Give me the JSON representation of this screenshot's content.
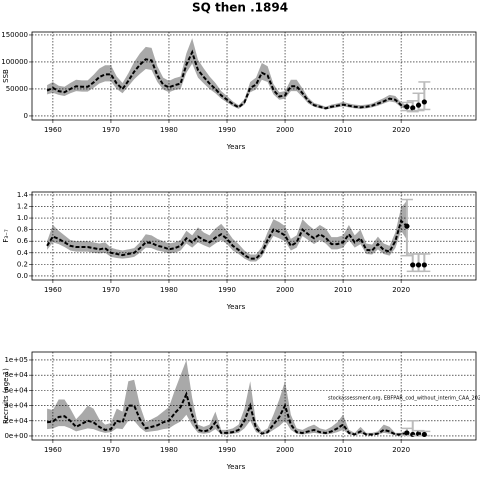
{
  "title": "SQ then .1894",
  "chart_data": [
    {
      "type": "line",
      "ylabel": "SSB",
      "xlabel": "Years",
      "x": [
        1959,
        1960,
        1961,
        1962,
        1963,
        1964,
        1965,
        1966,
        1967,
        1968,
        1969,
        1970,
        1971,
        1972,
        1973,
        1974,
        1975,
        1976,
        1977,
        1978,
        1979,
        1980,
        1981,
        1982,
        1983,
        1984,
        1985,
        1986,
        1987,
        1988,
        1989,
        1990,
        1991,
        1992,
        1993,
        1994,
        1995,
        1996,
        1997,
        1998,
        1999,
        2000,
        2001,
        2002,
        2003,
        2004,
        2005,
        2006,
        2007,
        2008,
        2009,
        2010,
        2011,
        2012,
        2013,
        2014,
        2015,
        2016,
        2017,
        2018,
        2019,
        2020,
        2021
      ],
      "values": [
        47000,
        52000,
        46000,
        44000,
        50000,
        55000,
        54000,
        54000,
        62000,
        72000,
        77000,
        77000,
        60000,
        50000,
        65000,
        82000,
        95000,
        105000,
        103000,
        75000,
        58000,
        53000,
        57000,
        60000,
        95000,
        118000,
        85000,
        72000,
        60000,
        50000,
        38000,
        30000,
        22000,
        16000,
        25000,
        52000,
        58000,
        80000,
        75000,
        48000,
        36000,
        38000,
        55000,
        55000,
        42000,
        28000,
        20000,
        17000,
        14000,
        17000,
        19000,
        21000,
        19000,
        17000,
        16000,
        17000,
        19000,
        23000,
        27000,
        32000,
        30000,
        20000,
        16000
      ],
      "lower": [
        40000,
        43000,
        39000,
        37000,
        42000,
        46000,
        45000,
        45000,
        52000,
        60000,
        64000,
        64000,
        50000,
        42000,
        55000,
        68000,
        78000,
        87000,
        85000,
        63000,
        49000,
        44000,
        48000,
        50000,
        80000,
        97000,
        71000,
        60000,
        50000,
        42000,
        32000,
        25000,
        18000,
        13000,
        21000,
        44000,
        49000,
        67000,
        63000,
        40000,
        30000,
        32000,
        46000,
        46000,
        35000,
        23000,
        17000,
        14000,
        12000,
        14000,
        16000,
        18000,
        16000,
        14000,
        13000,
        14000,
        16000,
        19000,
        23000,
        27000,
        25000,
        16000,
        12000
      ],
      "upper": [
        57000,
        63000,
        56000,
        54000,
        61000,
        67000,
        66000,
        66000,
        76000,
        88000,
        94000,
        94000,
        73000,
        61000,
        79000,
        100000,
        116000,
        128000,
        126000,
        92000,
        71000,
        65000,
        70000,
        73000,
        116000,
        144000,
        104000,
        88000,
        73000,
        61000,
        46000,
        37000,
        27000,
        20000,
        31000,
        63000,
        71000,
        98000,
        92000,
        59000,
        44000,
        46000,
        67000,
        67000,
        51000,
        34000,
        24000,
        21000,
        17000,
        21000,
        23000,
        26000,
        23000,
        21000,
        20000,
        21000,
        23000,
        28000,
        33000,
        39000,
        37000,
        25000,
        20000
      ],
      "proj_x": [
        2021,
        2022,
        2023,
        2024
      ],
      "proj_values": [
        17000,
        15000,
        20000,
        26000
      ],
      "proj_lower": [
        10000,
        8000,
        10000,
        12000
      ],
      "proj_upper": [
        25000,
        28000,
        42000,
        63000
      ],
      "xlim": [
        1956.4,
        2032.9
      ],
      "ylim": [
        -7500,
        155500
      ],
      "xticks": [
        1960,
        1970,
        1980,
        1990,
        2000,
        2010,
        2020
      ],
      "yticks": [
        0,
        50000,
        100000,
        150000
      ],
      "grid": true,
      "color": "#000000",
      "band_color": "#a9a9a9",
      "errorbar_color": "#bbbbbb"
    },
    {
      "type": "line",
      "ylabel": "F₃₋₇",
      "xlabel": "Years",
      "x": [
        1959,
        1960,
        1961,
        1962,
        1963,
        1964,
        1965,
        1966,
        1967,
        1968,
        1969,
        1970,
        1971,
        1972,
        1973,
        1974,
        1975,
        1976,
        1977,
        1978,
        1979,
        1980,
        1981,
        1982,
        1983,
        1984,
        1985,
        1986,
        1987,
        1988,
        1989,
        1990,
        1991,
        1992,
        1993,
        1994,
        1995,
        1996,
        1997,
        1998,
        1999,
        2000,
        2001,
        2002,
        2003,
        2004,
        2005,
        2006,
        2007,
        2008,
        2009,
        2010,
        2011,
        2012,
        2013,
        2014,
        2015,
        2016,
        2017,
        2018,
        2019,
        2020,
        2021
      ],
      "values": [
        0.52,
        0.68,
        0.64,
        0.58,
        0.52,
        0.5,
        0.5,
        0.5,
        0.48,
        0.46,
        0.48,
        0.4,
        0.38,
        0.36,
        0.38,
        0.4,
        0.48,
        0.58,
        0.57,
        0.52,
        0.5,
        0.46,
        0.48,
        0.52,
        0.65,
        0.58,
        0.68,
        0.62,
        0.58,
        0.66,
        0.72,
        0.64,
        0.52,
        0.45,
        0.36,
        0.3,
        0.3,
        0.4,
        0.62,
        0.8,
        0.76,
        0.7,
        0.52,
        0.58,
        0.8,
        0.72,
        0.65,
        0.72,
        0.66,
        0.55,
        0.55,
        0.58,
        0.72,
        0.58,
        0.65,
        0.45,
        0.44,
        0.55,
        0.45,
        0.42,
        0.6,
        0.95,
        0.86
      ],
      "lower": [
        0.45,
        0.58,
        0.55,
        0.5,
        0.44,
        0.42,
        0.42,
        0.42,
        0.4,
        0.39,
        0.4,
        0.33,
        0.31,
        0.3,
        0.31,
        0.33,
        0.4,
        0.49,
        0.48,
        0.44,
        0.42,
        0.39,
        0.4,
        0.44,
        0.56,
        0.49,
        0.58,
        0.53,
        0.49,
        0.56,
        0.62,
        0.55,
        0.44,
        0.38,
        0.3,
        0.25,
        0.25,
        0.33,
        0.53,
        0.69,
        0.65,
        0.6,
        0.44,
        0.49,
        0.69,
        0.62,
        0.55,
        0.62,
        0.56,
        0.46,
        0.46,
        0.49,
        0.62,
        0.49,
        0.55,
        0.38,
        0.37,
        0.46,
        0.38,
        0.35,
        0.48,
        0.78,
        0.62
      ],
      "upper": [
        0.6,
        0.88,
        0.78,
        0.7,
        0.62,
        0.6,
        0.6,
        0.6,
        0.58,
        0.56,
        0.58,
        0.49,
        0.46,
        0.44,
        0.46,
        0.48,
        0.58,
        0.72,
        0.7,
        0.64,
        0.6,
        0.56,
        0.58,
        0.62,
        0.78,
        0.7,
        0.84,
        0.75,
        0.7,
        0.82,
        0.9,
        0.78,
        0.64,
        0.55,
        0.44,
        0.37,
        0.37,
        0.5,
        0.76,
        0.98,
        0.93,
        0.86,
        0.64,
        0.7,
        0.98,
        0.88,
        0.8,
        0.88,
        0.82,
        0.67,
        0.67,
        0.7,
        0.88,
        0.7,
        0.8,
        0.56,
        0.54,
        0.68,
        0.56,
        0.52,
        0.75,
        1.18,
        1.3
      ],
      "proj_x": [
        2021,
        2022,
        2023,
        2024
      ],
      "proj_values": [
        0.86,
        0.19,
        0.19,
        0.19
      ],
      "proj_lower": [
        0.35,
        0.08,
        0.08,
        0.08
      ],
      "proj_upper": [
        1.32,
        0.38,
        0.38,
        0.38
      ],
      "xlim": [
        1956.4,
        2032.9
      ],
      "ylim": [
        -0.07,
        1.45
      ],
      "xticks": [
        1960,
        1970,
        1980,
        1990,
        2000,
        2010,
        2020
      ],
      "yticks": [
        {
          "value": 0,
          "label": "0.0"
        },
        0.2,
        0.4,
        0.6,
        0.8,
        {
          "value": 1,
          "label": "1.0"
        },
        1.2,
        1.4
      ],
      "grid": true,
      "color": "#000000",
      "band_color": "#a9a9a9",
      "errorbar_color": "#bbbbbb"
    },
    {
      "type": "line",
      "ylabel": "Recruits (age 1)",
      "xlabel": "Years",
      "annotation": "stockassessment.org, EBFPAR_cod_without_interim_CAA_202",
      "x": [
        1959,
        1960,
        1961,
        1962,
        1963,
        1964,
        1965,
        1966,
        1967,
        1968,
        1969,
        1970,
        1971,
        1972,
        1973,
        1974,
        1975,
        1976,
        1977,
        1978,
        1979,
        1980,
        1981,
        1982,
        1983,
        1984,
        1985,
        1986,
        1987,
        1988,
        1989,
        1990,
        1991,
        1992,
        1993,
        1994,
        1995,
        1996,
        1997,
        1998,
        1999,
        2000,
        2001,
        2002,
        2003,
        2004,
        2005,
        2006,
        2007,
        2008,
        2009,
        2010,
        2011,
        2012,
        2013,
        2014,
        2015,
        2016,
        2017,
        2018,
        2019,
        2020,
        2021
      ],
      "values": [
        18000,
        19000,
        25000,
        26000,
        20000,
        12000,
        16000,
        20000,
        18000,
        12000,
        8000,
        9000,
        20000,
        18000,
        40000,
        40000,
        22000,
        10000,
        12000,
        14000,
        18000,
        20000,
        30000,
        38000,
        55000,
        28000,
        8000,
        6000,
        8000,
        18000,
        4000,
        4000,
        5000,
        8000,
        20000,
        40000,
        10000,
        3000,
        5000,
        15000,
        25000,
        40000,
        15000,
        5000,
        4000,
        6000,
        8000,
        5000,
        4000,
        6000,
        10000,
        15000,
        4000,
        2000,
        6000,
        2000,
        2000,
        3000,
        8000,
        6000,
        2000,
        2000,
        4000
      ],
      "lower": [
        9000,
        10000,
        13000,
        13000,
        10000,
        6000,
        8000,
        10000,
        9000,
        6000,
        4000,
        5000,
        10000,
        9000,
        20000,
        20000,
        11000,
        5000,
        6000,
        7000,
        9000,
        10000,
        15000,
        19000,
        28000,
        14000,
        4000,
        3000,
        4000,
        9000,
        2000,
        2000,
        3000,
        4000,
        10000,
        20000,
        5000,
        2000,
        3000,
        8000,
        13000,
        20000,
        8000,
        3000,
        2000,
        3000,
        4000,
        3000,
        2000,
        3000,
        5000,
        8000,
        2000,
        1000,
        3000,
        1000,
        1000,
        2000,
        4000,
        3000,
        1000,
        1000,
        2000
      ],
      "upper": [
        36000,
        34000,
        48000,
        48000,
        36000,
        22000,
        30000,
        40000,
        36000,
        22000,
        15000,
        17000,
        36000,
        32000,
        72000,
        74000,
        40000,
        18000,
        22000,
        26000,
        32000,
        38000,
        60000,
        80000,
        100000,
        50000,
        15000,
        12000,
        15000,
        32000,
        8000,
        8000,
        10000,
        15000,
        36000,
        72000,
        18000,
        6000,
        10000,
        28000,
        48000,
        72000,
        28000,
        10000,
        8000,
        12000,
        15000,
        10000,
        8000,
        12000,
        18000,
        28000,
        8000,
        4000,
        12000,
        4000,
        4000,
        6000,
        15000,
        12000,
        4000,
        4000,
        8000
      ],
      "proj_x": [
        2021,
        2022,
        2023,
        2024
      ],
      "proj_values": [
        4000,
        2000,
        3000,
        2000
      ],
      "proj_lower": [
        1000,
        500,
        500,
        500
      ],
      "proj_upper": [
        10000,
        20000,
        7000,
        6000
      ],
      "xlim": [
        1956.4,
        2032.9
      ],
      "ylim": [
        -5300,
        110500
      ],
      "xticks": [
        1960,
        1970,
        1980,
        1990,
        2000,
        2010,
        2020
      ],
      "yticks": [
        {
          "value": 0,
          "label": "0e+00"
        },
        {
          "value": 20000,
          "label": "2e+04"
        },
        {
          "value": 40000,
          "label": "4e+04"
        },
        {
          "value": 60000,
          "label": "6e+04"
        },
        {
          "value": 80000,
          "label": "8e+04"
        },
        {
          "value": 100000,
          "label": "1e+05"
        }
      ],
      "grid": true,
      "color": "#000000",
      "band_color": "#a9a9a9",
      "errorbar_color": "#bbbbbb"
    }
  ]
}
